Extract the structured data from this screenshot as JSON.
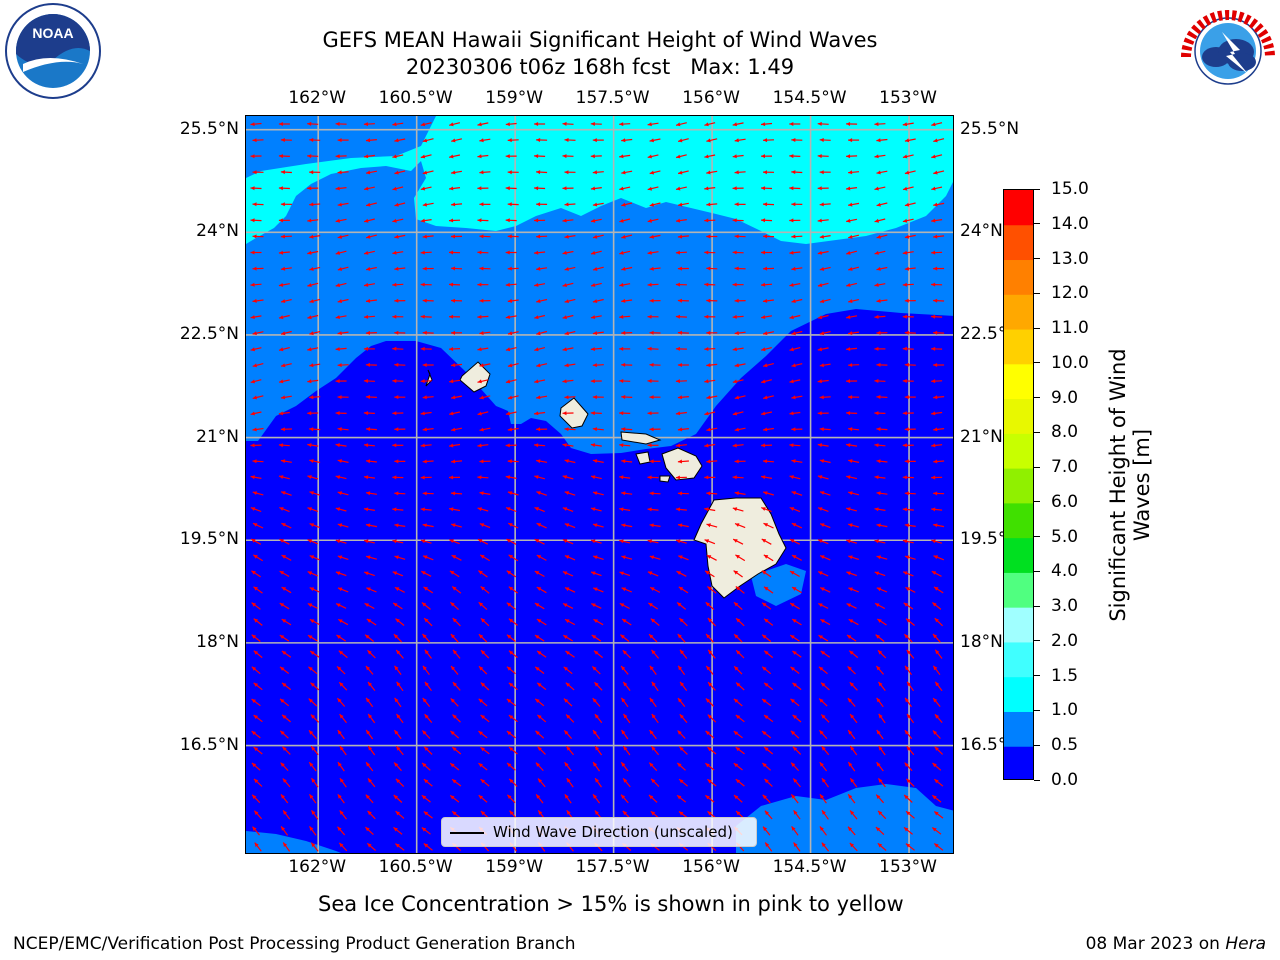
{
  "title": {
    "line1": "GEFS MEAN Hawaii Significant Height of Wind Waves",
    "line2": "20230306 t06z 168h fcst   Max: 1.49"
  },
  "map": {
    "lon_range": [
      -163.1,
      -152.3
    ],
    "lat_range": [
      14.9,
      25.7
    ],
    "lon_ticks": [
      {
        "value": -162.0,
        "label": "162°W"
      },
      {
        "value": -160.5,
        "label": "160.5°W"
      },
      {
        "value": -159.0,
        "label": "159°W"
      },
      {
        "value": -157.5,
        "label": "157.5°W"
      },
      {
        "value": -156.0,
        "label": "156°W"
      },
      {
        "value": -154.5,
        "label": "154.5°W"
      },
      {
        "value": -153.0,
        "label": "153°W"
      }
    ],
    "lat_ticks": [
      {
        "value": 25.5,
        "label": "25.5°N"
      },
      {
        "value": 24.0,
        "label": "24°N"
      },
      {
        "value": 22.5,
        "label": "22.5°N"
      },
      {
        "value": 21.0,
        "label": "21°N"
      },
      {
        "value": 19.5,
        "label": "19.5°N"
      },
      {
        "value": 18.0,
        "label": "18°N"
      },
      {
        "value": 16.5,
        "label": "16.5°N"
      }
    ],
    "colors": {
      "band_0_05": "#0000ff",
      "band_05_10": "#0080ff",
      "band_10_15": "#00ffff",
      "land": "#efedde",
      "arrow": "#ff0000",
      "grid": "#b4b4b4"
    },
    "legend_label": "Wind Wave Direction (unscaled)"
  },
  "colorbar": {
    "label_line1": "Significant Height of Wind",
    "label_line2": "Waves [m]",
    "ticks": [
      "0.0",
      "0.5",
      "1.0",
      "1.5",
      "2.0",
      "3.0",
      "4.0",
      "5.0",
      "6.0",
      "7.0",
      "8.0",
      "9.0",
      "10.0",
      "11.0",
      "12.0",
      "13.0",
      "14.0",
      "15.0"
    ],
    "colors": [
      "#0000ff",
      "#0080ff",
      "#00ffff",
      "#40ffff",
      "#a0ffff",
      "#50ff80",
      "#00e020",
      "#40e000",
      "#90f000",
      "#c8ff00",
      "#e8f800",
      "#ffff00",
      "#ffd000",
      "#ffa800",
      "#ff8000",
      "#ff5000",
      "#ff0000"
    ]
  },
  "sea_ice_note": "Sea Ice Concentration > 15% is shown in pink to yellow",
  "footer": {
    "left": "NCEP/EMC/Verification Post Processing Product Generation Branch",
    "right_date": "08 Mar 2023 on",
    "right_host": "Hera"
  }
}
